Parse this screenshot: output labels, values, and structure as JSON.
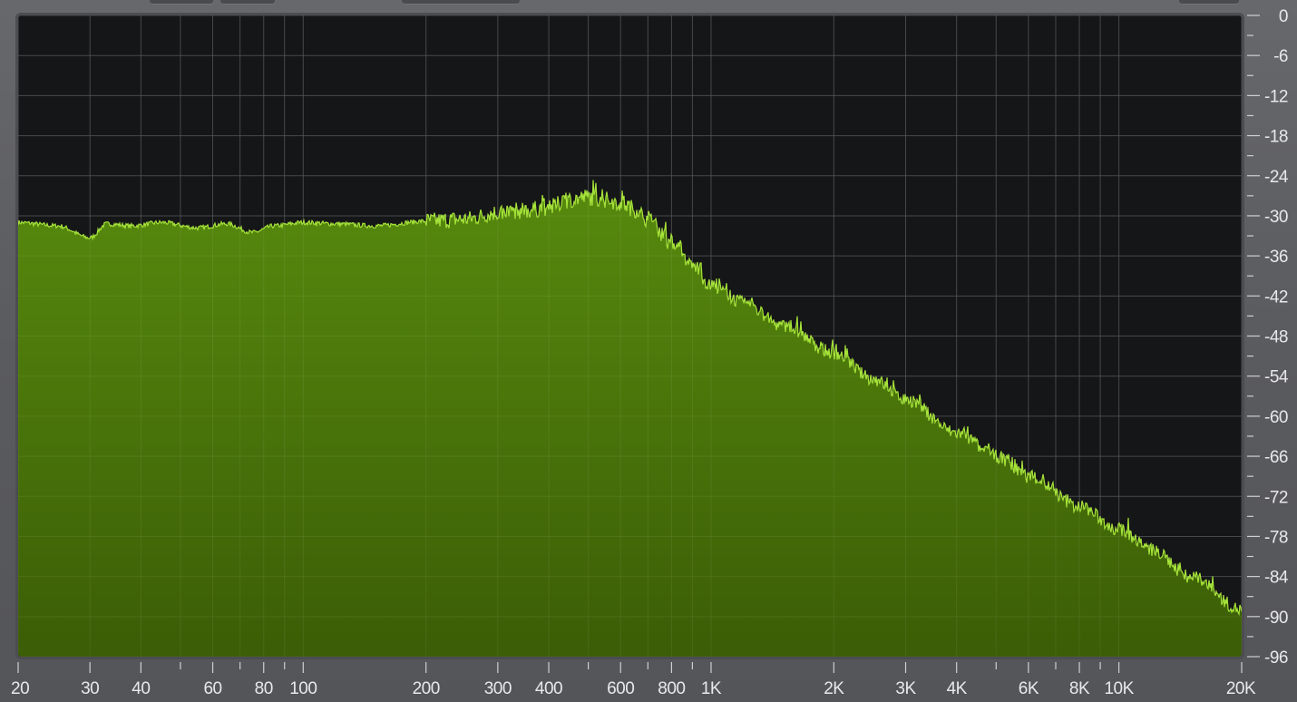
{
  "app": {
    "top_tabs_visible": 5
  },
  "colors": {
    "plot_background": "#151617",
    "gridline": "#3a3b3d",
    "fill_top": "#578a0e",
    "fill_bottom": "#3b5d06",
    "spectrum_stroke": "#a6e33a",
    "frame": "#4c4d51",
    "tick_text": "#e8e8ea",
    "minor_tick": "#cfcfd2"
  },
  "chart_data": {
    "type": "area",
    "title": "",
    "xlabel": "",
    "ylabel": "",
    "x_scale": "log",
    "xlim": [
      20,
      20000
    ],
    "ylim": [
      -96,
      0
    ],
    "grid": true,
    "y_ticks": [
      0,
      -6,
      -12,
      -18,
      -24,
      -30,
      -36,
      -42,
      -48,
      -54,
      -60,
      -66,
      -72,
      -78,
      -84,
      -90,
      -96
    ],
    "y_tick_labels": [
      "0",
      "-6",
      "-12",
      "-18",
      "-24",
      "-30",
      "-36",
      "-42",
      "-48",
      "-54",
      "-60",
      "-66",
      "-72",
      "-78",
      "-84",
      "-90",
      "-96"
    ],
    "x_ticks": [
      20,
      30,
      40,
      60,
      80,
      100,
      200,
      300,
      400,
      600,
      800,
      1000,
      2000,
      3000,
      4000,
      6000,
      8000,
      10000,
      20000
    ],
    "x_tick_labels": [
      "20",
      "30",
      "40",
      "60",
      "80",
      "100",
      "200",
      "300",
      "400",
      "600",
      "800",
      "1K",
      "2K",
      "3K",
      "4K",
      "6K",
      "8K",
      "10K",
      "20K"
    ],
    "x_minor_ticks": [
      50,
      70,
      90,
      500,
      700,
      900,
      5000,
      7000,
      9000
    ],
    "series": [
      {
        "x": [
          20,
          25,
          30,
          33,
          38,
          45,
          55,
          65,
          75,
          85,
          100,
          120,
          150,
          200,
          250,
          300,
          350,
          400,
          450,
          500,
          550,
          600,
          650,
          700,
          800,
          900,
          1000,
          1200,
          1500,
          2000,
          2500,
          3000,
          4000,
          5000,
          6000,
          8000,
          10000,
          12000,
          15000,
          20000
        ],
        "y": [
          -31,
          -31.5,
          -33.3,
          -31.2,
          -31.5,
          -31.0,
          -31.8,
          -31.2,
          -32.5,
          -31.5,
          -31.0,
          -31.2,
          -31.5,
          -30.8,
          -30.5,
          -29.5,
          -29.2,
          -28.8,
          -27.6,
          -27.2,
          -27.6,
          -28.0,
          -29.0,
          -30.5,
          -34.0,
          -37.5,
          -40.5,
          -43.0,
          -46.5,
          -50.5,
          -54.5,
          -57.5,
          -62.5,
          -66.0,
          -69.0,
          -73.5,
          -77.0,
          -80.0,
          -84.0,
          -89.0
        ]
      }
    ]
  }
}
